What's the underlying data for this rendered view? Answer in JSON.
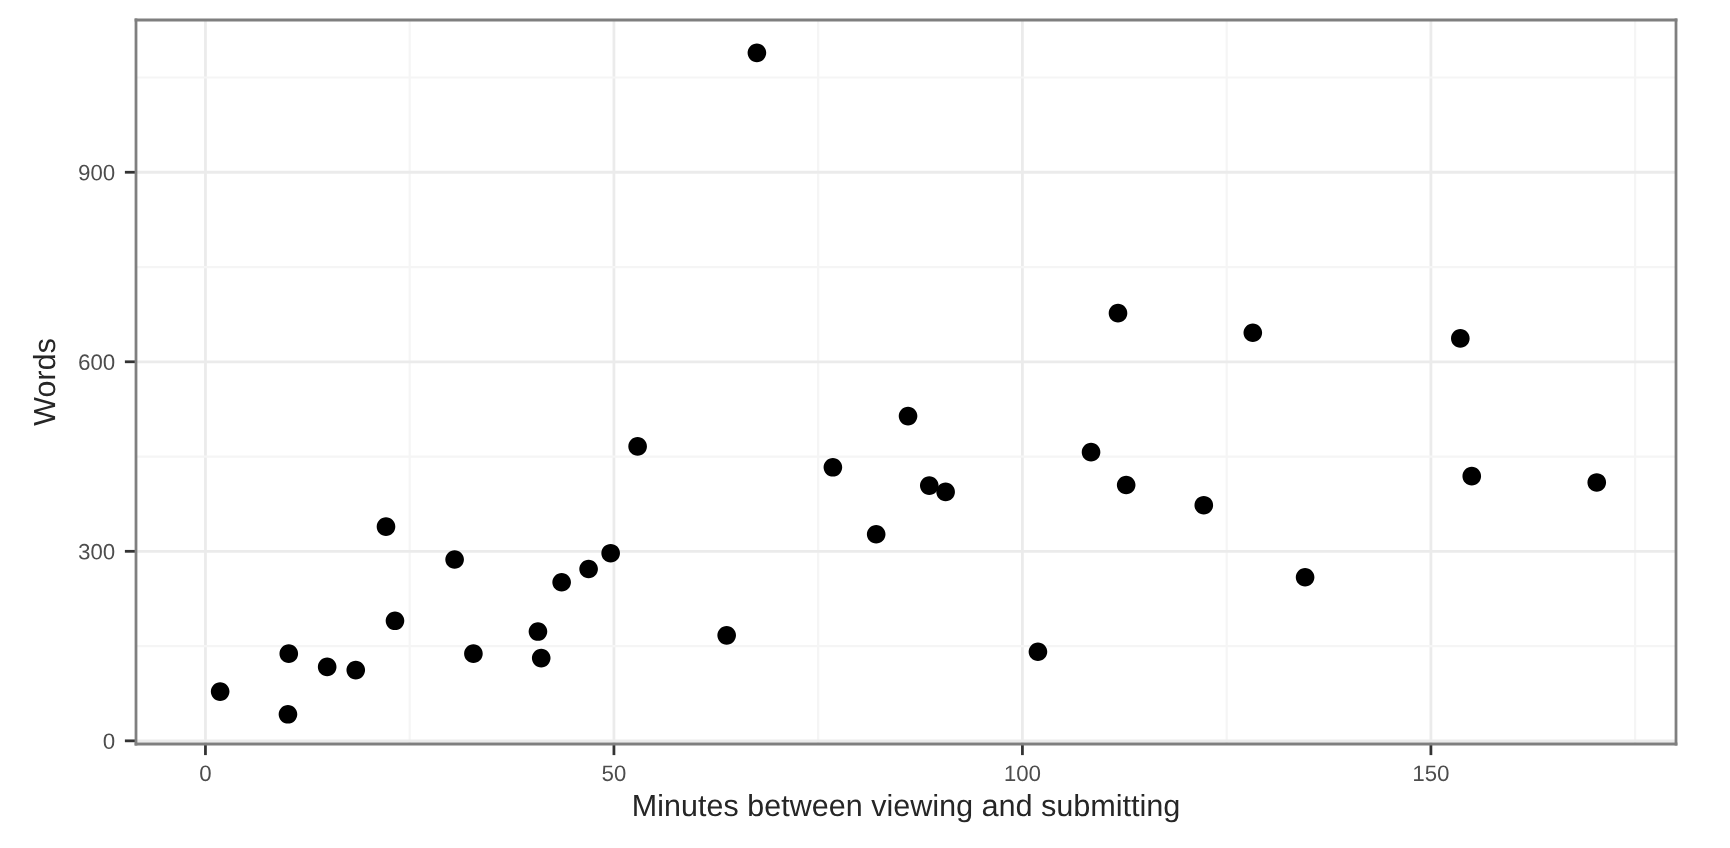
{
  "chart_data": {
    "type": "scatter",
    "xlabel": "Minutes between viewing and submitting",
    "ylabel": "Words",
    "x": [
      1.8,
      10.2,
      10.1,
      14.9,
      18.4,
      22.1,
      23.2,
      30.5,
      32.8,
      40.7,
      41.1,
      43.6,
      46.9,
      49.6,
      52.9,
      63.8,
      67.5,
      76.8,
      82.1,
      86.0,
      88.6,
      90.6,
      101.9,
      108.4,
      111.7,
      112.7,
      122.2,
      128.2,
      134.6,
      153.6,
      155.0,
      170.3
    ],
    "series": [
      {
        "color": "#000000",
        "values": [
          78,
          138,
          42,
          117,
          112,
          339,
          190,
          287,
          138,
          173,
          131,
          251,
          272,
          297,
          466,
          167,
          1089,
          433,
          327,
          514,
          404,
          394,
          141,
          457,
          677,
          405,
          373,
          646,
          259,
          637,
          419,
          409
        ]
      }
    ],
    "xlim": [
      -8.5,
      180
    ],
    "ylim": [
      -5,
      1141
    ],
    "xticks": [
      0,
      50,
      100,
      150
    ],
    "yticks": [
      0,
      300,
      600,
      900
    ],
    "grid": true,
    "marker": "circle"
  }
}
